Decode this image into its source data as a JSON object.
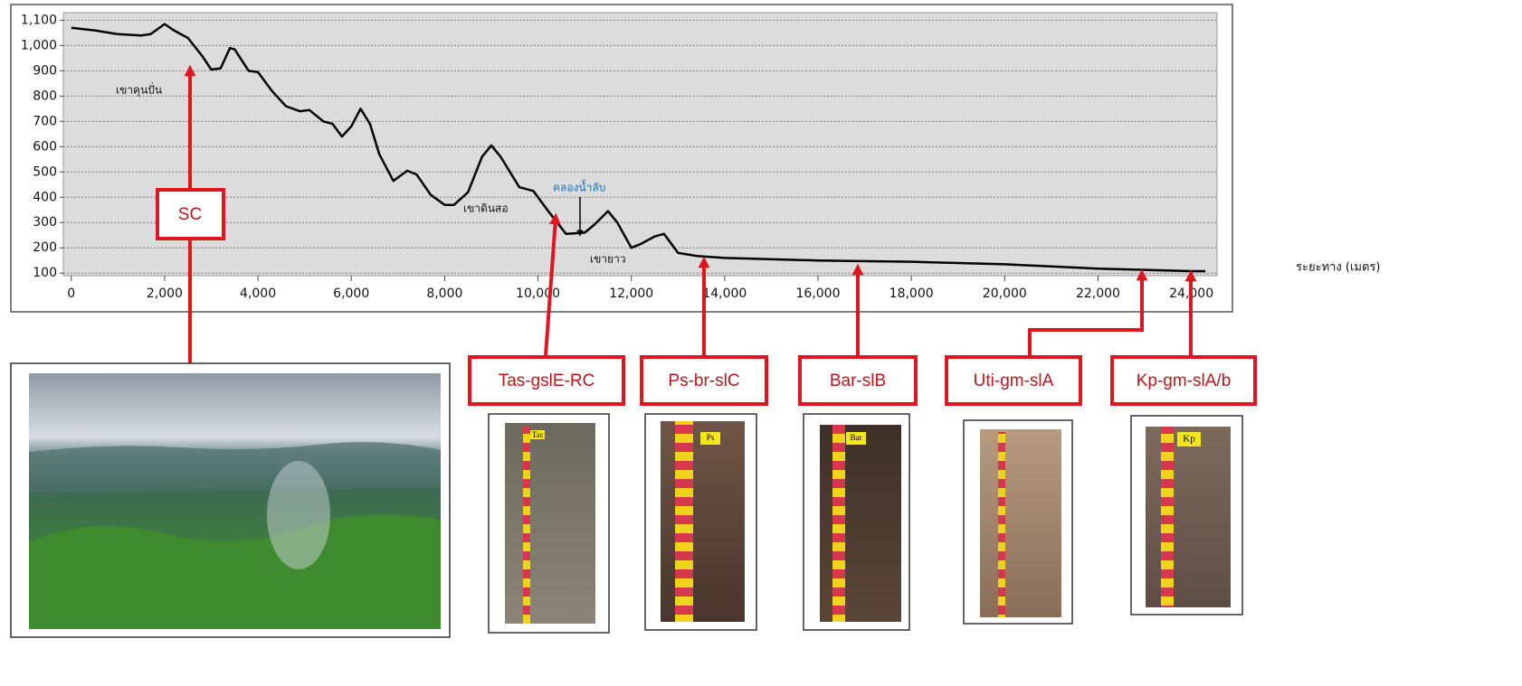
{
  "chart_data": {
    "type": "line",
    "x": [
      0,
      500,
      1000,
      1500,
      1700,
      2000,
      2200,
      2500,
      2800,
      3000,
      3200,
      3400,
      3500,
      3800,
      4000,
      4300,
      4600,
      4900,
      5100,
      5400,
      5600,
      5800,
      6000,
      6200,
      6400,
      6600,
      6900,
      7200,
      7400,
      7700,
      8000,
      8200,
      8500,
      8800,
      9000,
      9200,
      9600,
      9900,
      10200,
      10600,
      11000,
      11200,
      11500,
      11700,
      12000,
      12200,
      12500,
      12700,
      13000,
      13400,
      14000,
      16000,
      18000,
      20000,
      22000,
      24000,
      24300
    ],
    "values": [
      1070,
      1060,
      1045,
      1040,
      1045,
      1085,
      1060,
      1030,
      960,
      905,
      910,
      990,
      985,
      900,
      895,
      820,
      760,
      740,
      745,
      700,
      690,
      640,
      680,
      750,
      690,
      570,
      465,
      505,
      490,
      410,
      370,
      370,
      420,
      560,
      605,
      560,
      440,
      425,
      350,
      255,
      260,
      290,
      345,
      300,
      200,
      215,
      245,
      255,
      180,
      168,
      160,
      150,
      145,
      135,
      118,
      108,
      108
    ],
    "color": "#000000",
    "xlim": [
      -170,
      24550
    ],
    "ylim": [
      90,
      1130
    ],
    "xticks": [
      0,
      {
        "value": 2000,
        "label": "2,000"
      },
      {
        "value": 4000,
        "label": "4,000"
      },
      {
        "value": 6000,
        "label": "6,000"
      },
      {
        "value": 8000,
        "label": "8,000"
      },
      {
        "value": 10000,
        "label": "10,000"
      },
      {
        "value": 12000,
        "label": "12,000"
      },
      {
        "value": 14000,
        "label": "14,000"
      },
      {
        "value": 16000,
        "label": "16,000"
      },
      {
        "value": 18000,
        "label": "18,000"
      },
      {
        "value": 20000,
        "label": "20,000"
      },
      {
        "value": 22000,
        "label": "22,000"
      },
      {
        "value": 24000,
        "label": "24,000"
      }
    ],
    "yticks": [
      100,
      200,
      300,
      400,
      500,
      600,
      700,
      800,
      900,
      {
        "value": 1000,
        "label": "1,000"
      },
      {
        "value": 1100,
        "label": "1,100"
      }
    ],
    "grid": true,
    "x_label": "ระยะทาง (เมตร)",
    "annotations": [
      "เขาคุนปั่น",
      "คลองน้ำลับ",
      "เขาดินสอ",
      "เขายาว"
    ]
  },
  "callouts": [
    {
      "label": "SC"
    },
    {
      "label": "Tas-gslE-RC",
      "photo_label": "Tas"
    },
    {
      "label": "Ps-br-slC",
      "photo_label": "Ps"
    },
    {
      "label": "Bar-slB",
      "photo_label": "Bar"
    },
    {
      "label": "Uti-gm-slA"
    },
    {
      "label": "Kp-gm-slA/b",
      "photo_label": "Kp"
    }
  ]
}
